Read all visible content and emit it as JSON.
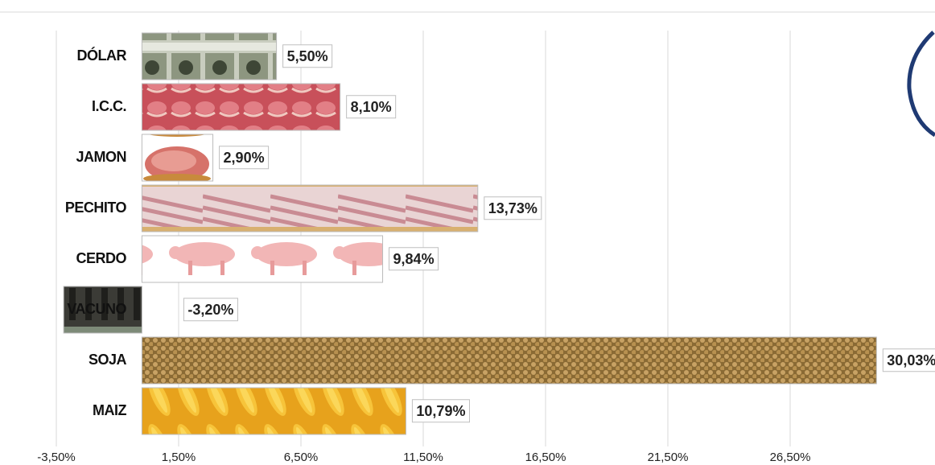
{
  "chart_data": {
    "type": "hbar",
    "categories": [
      "DÓLAR",
      "I.C.C.",
      "JAMON",
      "PECHITO",
      "CERDO",
      "VACUNO",
      "SOJA",
      "MAIZ"
    ],
    "values": [
      5.5,
      8.1,
      2.9,
      13.73,
      9.84,
      -3.2,
      30.03,
      10.79
    ],
    "value_labels": [
      "5,50%",
      "8,10%",
      "2,90%",
      "13,73%",
      "9,84%",
      "-3,20%",
      "30,03%",
      "10,79%"
    ],
    "xlim": [
      -3.5,
      31.5
    ],
    "xticks": [
      {
        "value": -3.5,
        "label": "-3,50%"
      },
      {
        "value": 1.5,
        "label": "1,50%"
      },
      {
        "value": 6.5,
        "label": "6,50%"
      },
      {
        "value": 11.5,
        "label": "11,50%"
      },
      {
        "value": 16.5,
        "label": "16,50%"
      },
      {
        "value": 21.5,
        "label": "21,50%"
      },
      {
        "value": 26.5,
        "label": "26,50%"
      }
    ],
    "grid": true
  }
}
